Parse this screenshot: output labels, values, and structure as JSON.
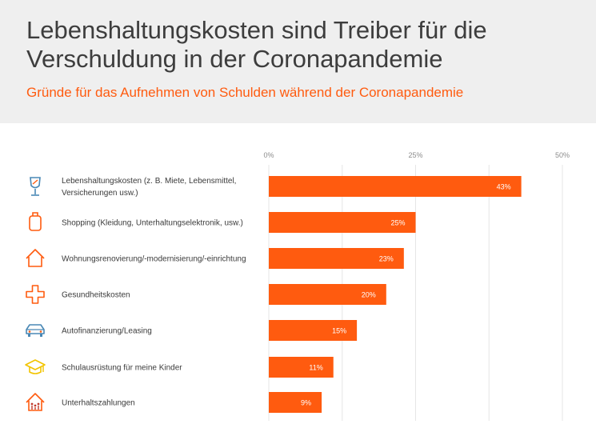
{
  "header": {
    "title_line1": "Lebenshaltungskosten sind Treiber für die",
    "title_line2": "Verschuldung in der Coronapandemie",
    "subtitle": "Gründe für das Aufnehmen von Schulden während der Coronapandemie"
  },
  "colors": {
    "accent": "#ff5b0f",
    "header_bg": "#efefef",
    "title_text": "#3d3d3d",
    "wine_icon": "#4a88b5",
    "car_icon": "#4a88b5",
    "cap_icon": "#f2c400",
    "household_icon": "#c0392b"
  },
  "chart_data": {
    "type": "bar",
    "orientation": "horizontal",
    "categories": [
      [
        "Lebenshaltungskosten (z. B. Miete, Lebensmittel,",
        "Versicherungen usw.)"
      ],
      [
        "Shopping (Kleidung, Unterhaltungselektronik, usw.)"
      ],
      [
        "Wohnungsrenovierung/-modernisierung/-einrichtung"
      ],
      [
        "Gesundheitskosten"
      ],
      [
        "Autofinanzierung/Leasing"
      ],
      [
        "Schulausrüstung für meine Kinder"
      ],
      [
        "Unterhaltszahlungen"
      ]
    ],
    "icons": [
      "wine-glass-icon",
      "shopping-bag-icon",
      "house-icon",
      "medical-cross-icon",
      "car-icon",
      "graduation-cap-icon",
      "family-house-icon"
    ],
    "values": [
      43,
      25,
      23,
      20,
      15,
      11,
      9
    ],
    "value_labels": [
      "43%",
      "25%",
      "23%",
      "20%",
      "15%",
      "11%",
      "9%"
    ],
    "x_ticks": [
      "0%",
      "25%",
      "50%"
    ],
    "x_tick_values": [
      0,
      25,
      50
    ],
    "xlim": [
      0,
      50
    ],
    "grid": true,
    "xlabel": "",
    "ylabel": ""
  }
}
